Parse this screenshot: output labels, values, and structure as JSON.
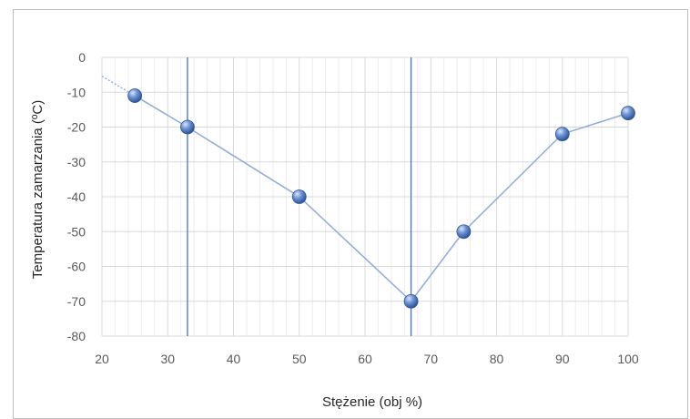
{
  "chart_data": {
    "type": "scatter",
    "title": "",
    "xlabel": "Stężenie (obj %)",
    "ylabel": "Temperatura zamarzania (ºC)",
    "xlim": [
      20,
      100
    ],
    "ylim": [
      -80,
      0
    ],
    "x_ticks": [
      "20",
      "30",
      "40",
      "50",
      "60",
      "70",
      "80",
      "90",
      "100"
    ],
    "y_ticks": [
      "0",
      "-10",
      "-20",
      "-30",
      "-40",
      "-50",
      "-60",
      "-70",
      "-80"
    ],
    "series": [
      {
        "x": [
          25,
          33,
          50,
          67,
          75,
          90,
          100
        ],
        "y": [
          -11,
          -20,
          -40,
          -70,
          -50,
          -22,
          -16
        ]
      }
    ],
    "vertical_lines": [
      33,
      67
    ],
    "grid": true,
    "colors": {
      "line": "#8faadc",
      "marker": "#4472c4",
      "vline": "#4472c4",
      "grid": "#e0e0e0"
    }
  }
}
